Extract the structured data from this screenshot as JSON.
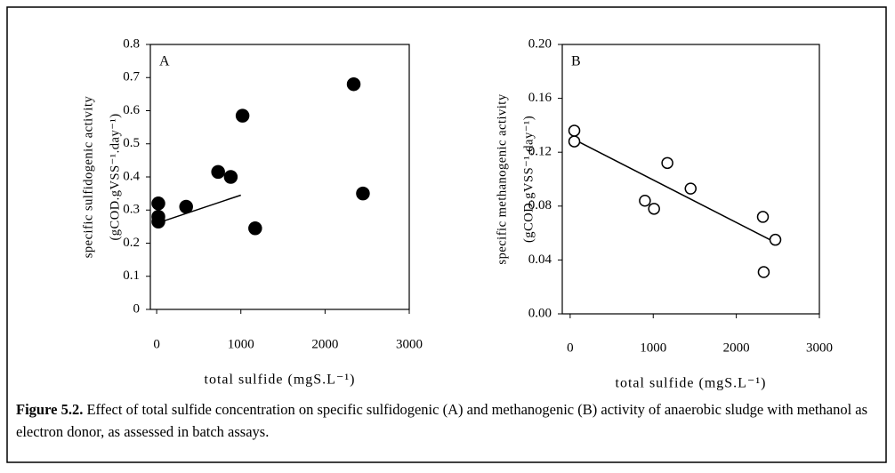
{
  "chart_data": [
    {
      "type": "scatter",
      "annotation": "A",
      "xlabel": "total sulfide (mgS.L⁻¹)",
      "ylabel": [
        "specific sulfidogenic activity",
        "(gCOD.gVSS⁻¹.day⁻¹)"
      ],
      "x": [
        20,
        20,
        20,
        350,
        730,
        880,
        1020,
        1170,
        2340,
        2450
      ],
      "values": [
        0.32,
        0.28,
        0.265,
        0.31,
        0.415,
        0.4,
        0.585,
        0.245,
        0.68,
        0.35
      ],
      "marker": "filled",
      "color": "#000000",
      "trendline": {
        "x": [
          0,
          1000
        ],
        "values": [
          0.26,
          0.345
        ]
      },
      "xlim": [
        -75,
        3000
      ],
      "xticks": [
        0,
        1000,
        2000,
        3000
      ],
      "ylim": [
        0,
        0.8
      ],
      "yticks": [
        0,
        0.1,
        0.2,
        0.3,
        0.4,
        0.5,
        0.6,
        0.7,
        0.8
      ]
    },
    {
      "type": "scatter",
      "annotation": "B",
      "xlabel": "total sulfide (mgS.L⁻¹)",
      "ylabel": [
        "specific methanogenic activity",
        "(gCOD.gVSS⁻¹.day⁻¹)"
      ],
      "x": [
        50,
        50,
        900,
        1010,
        1170,
        1450,
        2320,
        2330,
        2470
      ],
      "values": [
        0.136,
        0.128,
        0.084,
        0.078,
        0.112,
        0.093,
        0.072,
        0.031,
        0.055
      ],
      "marker": "open",
      "color": "#000000",
      "trendline": {
        "x": [
          0,
          2470
        ],
        "values": [
          0.131,
          0.053
        ]
      },
      "xlim": [
        -95,
        3000
      ],
      "xticks": [
        0,
        1000,
        2000,
        3000
      ],
      "ylim": [
        0,
        0.2
      ],
      "yticks": [
        {
          "value": 0,
          "label": "0.00"
        },
        {
          "value": 0.04,
          "label": "0.04"
        },
        {
          "value": 0.08,
          "label": "0.08"
        },
        {
          "value": 0.12,
          "label": "0.12"
        },
        {
          "value": 0.16,
          "label": "0.16"
        },
        {
          "value": 0.2,
          "label": "0.20"
        }
      ]
    }
  ],
  "caption": {
    "label": "Figure 5.2.",
    "text": "Effect of total sulfide concentration on specific sulfidogenic (A) and methanogenic (B) activity of anaerobic sludge with methanol as electron donor, as assessed in batch assays."
  }
}
